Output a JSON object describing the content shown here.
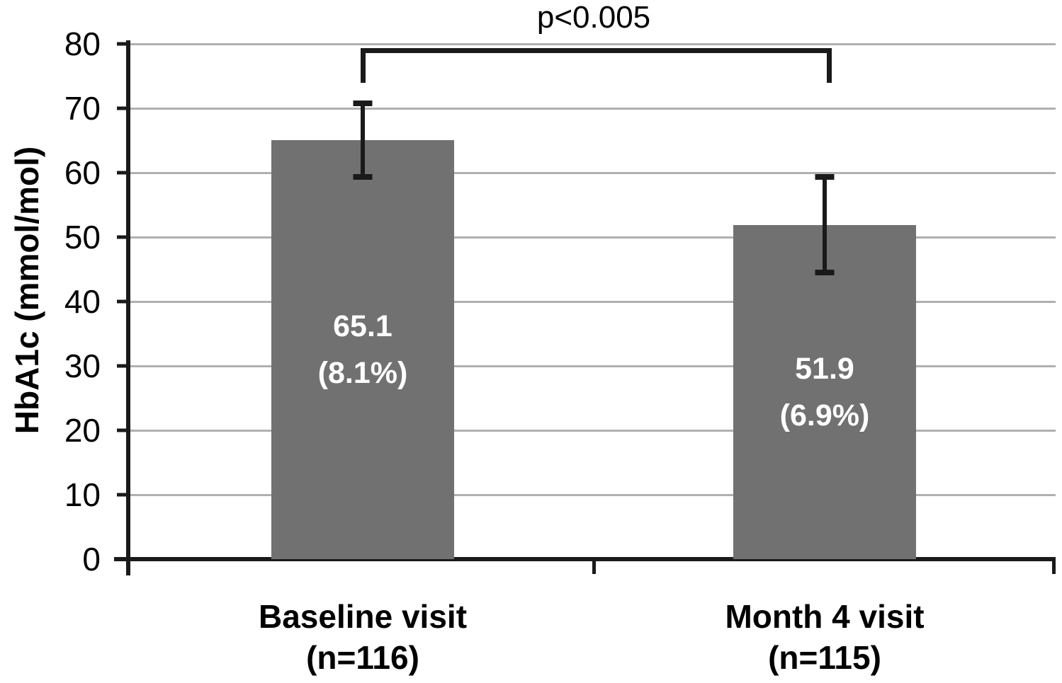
{
  "chart_data": {
    "type": "bar",
    "title": "",
    "xlabel": "",
    "ylabel": "HbA1c (mmol/mol)",
    "ylim": [
      0,
      80
    ],
    "yticks": [
      0,
      10,
      20,
      30,
      40,
      50,
      60,
      70,
      80
    ],
    "grid": true,
    "legend": "none",
    "categories": [
      "Baseline visit (n=116)",
      "Month 4 visit (n=115)"
    ],
    "values": [
      65.1,
      51.9
    ],
    "bars": [
      {
        "category_line1": "Baseline visit",
        "category_line2": "(n=116)",
        "value": 65.1,
        "value_label": "65.1",
        "percent_label": "(8.1%)",
        "error_high": 70.8,
        "error_low": 59.3
      },
      {
        "category_line1": "Month 4 visit",
        "category_line2": "(n=115)",
        "value": 51.9,
        "value_label": "51.9",
        "percent_label": "(6.9%)",
        "error_high": 59.3,
        "error_low": 44.5
      }
    ],
    "significance": {
      "label": "p<0.005",
      "between": [
        0,
        1
      ]
    },
    "colors": {
      "bar": "#717171",
      "gridline": "#b0b0b0",
      "axis": "#1a1a1a",
      "error_bar": "#1a1a1a",
      "bar_label_text": "#ffffff",
      "text": "#000000"
    }
  }
}
